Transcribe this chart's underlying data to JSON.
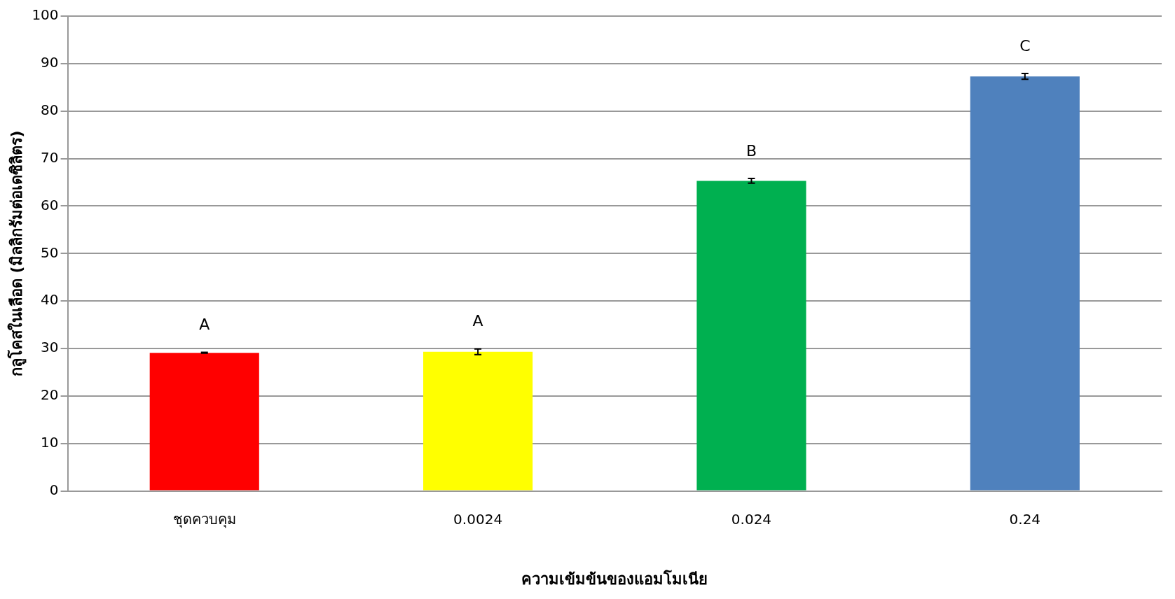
{
  "chart_data": {
    "type": "bar",
    "xlabel": "ความเข้มข้นของแอมโมเนีย",
    "ylabel": "กลูโคสในเลือด (มิลลิกรัมต่อเดซิลิตร)",
    "categories": [
      "ชุดควบคุม",
      "0.0024",
      "0.024",
      "0.24"
    ],
    "values": [
      29.1,
      29.3,
      65.3,
      87.3
    ],
    "colors": [
      "#ff0000",
      "#ffff00",
      "#00b050",
      "#4f81bd"
    ],
    "errors": [
      0.1,
      0.6,
      0.5,
      0.6
    ],
    "ylim": [
      0,
      100
    ],
    "yticks": [
      0,
      10,
      20,
      30,
      40,
      50,
      60,
      70,
      80,
      90,
      100
    ],
    "grid": "y",
    "legend": false,
    "annotations": [
      "A",
      "A",
      "B",
      "C"
    ]
  }
}
